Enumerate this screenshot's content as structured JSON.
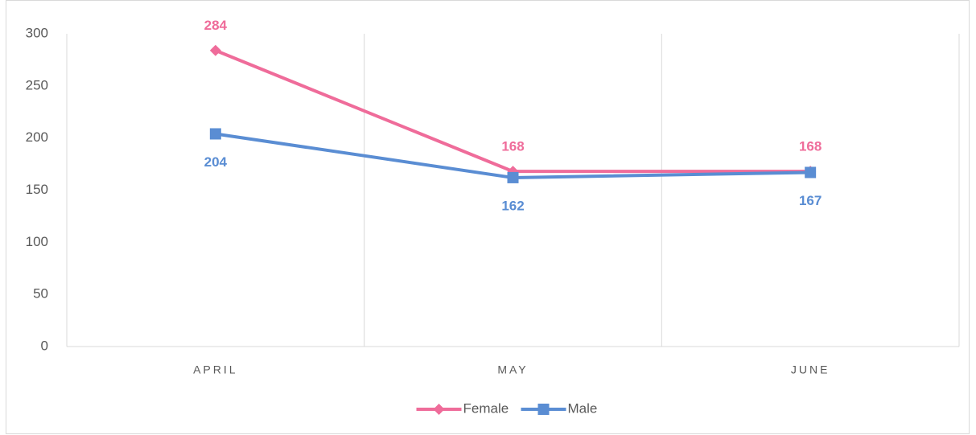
{
  "chart_data": {
    "type": "line",
    "categories": [
      "APRIL",
      "MAY",
      "JUNE"
    ],
    "series": [
      {
        "name": "Female",
        "color": "#ef6c9a",
        "marker": "diamond",
        "label_position": "above",
        "values": [
          284,
          168,
          168
        ]
      },
      {
        "name": "Male",
        "color": "#5a8dd3",
        "marker": "square",
        "label_position": "below",
        "values": [
          204,
          162,
          167
        ]
      }
    ],
    "ylim": [
      0,
      300
    ],
    "yticks": [
      0,
      50,
      100,
      150,
      200,
      250,
      300
    ],
    "grid": true,
    "legend": "bottom"
  }
}
